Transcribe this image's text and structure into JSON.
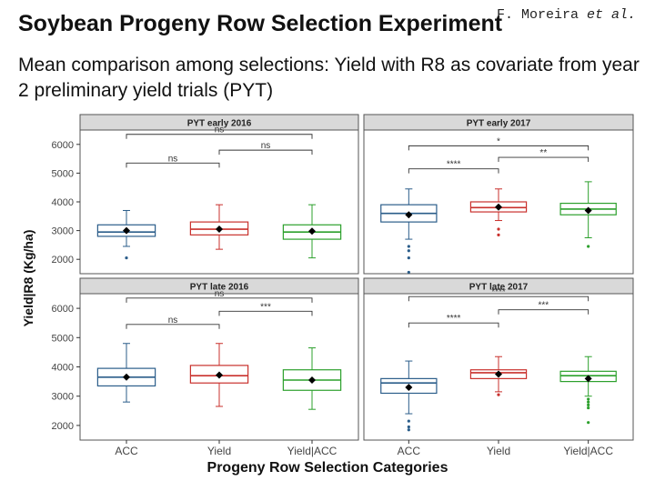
{
  "slide": {
    "title": "Soybean Progeny Row Selection Experiment",
    "author": "F. Moreira",
    "author_suffix": "et al.",
    "subtitle": "Mean comparison among selections: Yield with R8 as covariate from year 2 preliminary yield trials (PYT)"
  },
  "colors": {
    "ACC": "#2b5d8a",
    "Yield": "#c9302c",
    "Yield|ACC": "#2ca02c",
    "strip": "#d9d9d9",
    "panel_border": "#555555"
  },
  "chart_data": {
    "type": "box",
    "ylabel": "Yield|R8 (Kg/ha)",
    "xlabel": "Progeny Row Selection Categories",
    "categories": [
      "ACC",
      "Yield",
      "Yield|ACC"
    ],
    "grid": false,
    "panels": [
      {
        "title": "PYT early 2016",
        "ylim": [
          1500,
          6500
        ],
        "yticks": [
          2000,
          3000,
          4000,
          5000,
          6000
        ],
        "boxes": [
          {
            "group": "ACC",
            "min": 2450,
            "q1": 2800,
            "median": 2950,
            "q3": 3200,
            "max": 3700,
            "mean": 3000,
            "outliers": [
              2050
            ]
          },
          {
            "group": "Yield",
            "min": 2350,
            "q1": 2850,
            "median": 3050,
            "q3": 3300,
            "max": 3900,
            "mean": 3050,
            "outliers": []
          },
          {
            "group": "Yield|ACC",
            "min": 2050,
            "q1": 2700,
            "median": 2950,
            "q3": 3200,
            "max": 3900,
            "mean": 2980,
            "outliers": []
          }
        ],
        "comparisons": [
          {
            "from": "ACC",
            "to": "Yield|ACC",
            "y": 6350,
            "label": "ns"
          },
          {
            "from": "Yield",
            "to": "Yield|ACC",
            "y": 5800,
            "label": "ns"
          },
          {
            "from": "ACC",
            "to": "Yield",
            "y": 5350,
            "label": "ns"
          }
        ]
      },
      {
        "title": "PYT early 2017",
        "ylim": [
          1500,
          6500
        ],
        "yticks": [
          2000,
          3000,
          4000,
          5000,
          6000
        ],
        "boxes": [
          {
            "group": "ACC",
            "min": 2700,
            "q1": 3300,
            "median": 3600,
            "q3": 3900,
            "max": 4450,
            "mean": 3550,
            "outliers": [
              2450,
              2300,
              2050,
              1550
            ]
          },
          {
            "group": "Yield",
            "min": 3350,
            "q1": 3650,
            "median": 3800,
            "q3": 4000,
            "max": 4450,
            "mean": 3820,
            "outliers": [
              3050,
              2850
            ]
          },
          {
            "group": "Yield|ACC",
            "min": 2750,
            "q1": 3550,
            "median": 3750,
            "q3": 3950,
            "max": 4700,
            "mean": 3700,
            "outliers": [
              2450
            ]
          }
        ],
        "comparisons": [
          {
            "from": "ACC",
            "to": "Yield|ACC",
            "y": 5950,
            "label": "*"
          },
          {
            "from": "Yield",
            "to": "Yield|ACC",
            "y": 5550,
            "label": "**"
          },
          {
            "from": "ACC",
            "to": "Yield",
            "y": 5150,
            "label": "****"
          }
        ]
      },
      {
        "title": "PYT late 2016",
        "ylim": [
          1500,
          6500
        ],
        "yticks": [
          2000,
          3000,
          4000,
          5000,
          6000
        ],
        "boxes": [
          {
            "group": "ACC",
            "min": 2800,
            "q1": 3350,
            "median": 3650,
            "q3": 3950,
            "max": 4800,
            "mean": 3650,
            "outliers": []
          },
          {
            "group": "Yield",
            "min": 2650,
            "q1": 3450,
            "median": 3700,
            "q3": 4050,
            "max": 4800,
            "mean": 3720,
            "outliers": []
          },
          {
            "group": "Yield|ACC",
            "min": 2550,
            "q1": 3200,
            "median": 3550,
            "q3": 3900,
            "max": 4650,
            "mean": 3550,
            "outliers": []
          }
        ],
        "comparisons": [
          {
            "from": "ACC",
            "to": "Yield|ACC",
            "y": 6350,
            "label": "ns"
          },
          {
            "from": "Yield",
            "to": "Yield|ACC",
            "y": 5900,
            "label": "***"
          },
          {
            "from": "ACC",
            "to": "Yield",
            "y": 5450,
            "label": "ns"
          }
        ]
      },
      {
        "title": "PYT late 2017",
        "ylim": [
          1500,
          6500
        ],
        "yticks": [
          2000,
          3000,
          4000,
          5000,
          6000
        ],
        "boxes": [
          {
            "group": "ACC",
            "min": 2400,
            "q1": 3100,
            "median": 3450,
            "q3": 3600,
            "max": 4200,
            "mean": 3300,
            "outliers": [
              2150,
              1950,
              1850
            ]
          },
          {
            "group": "Yield",
            "min": 3150,
            "q1": 3600,
            "median": 3800,
            "q3": 3900,
            "max": 4350,
            "mean": 3750,
            "outliers": [
              3050
            ]
          },
          {
            "group": "Yield|ACC",
            "min": 3000,
            "q1": 3500,
            "median": 3700,
            "q3": 3850,
            "max": 4350,
            "mean": 3600,
            "outliers": [
              2900,
              2800,
              2700,
              2600,
              2100
            ]
          }
        ],
        "comparisons": [
          {
            "from": "ACC",
            "to": "Yield|ACC",
            "y": 6400,
            "label": "****"
          },
          {
            "from": "Yield",
            "to": "Yield|ACC",
            "y": 5950,
            "label": "***"
          },
          {
            "from": "ACC",
            "to": "Yield",
            "y": 5500,
            "label": "****"
          }
        ]
      }
    ]
  }
}
